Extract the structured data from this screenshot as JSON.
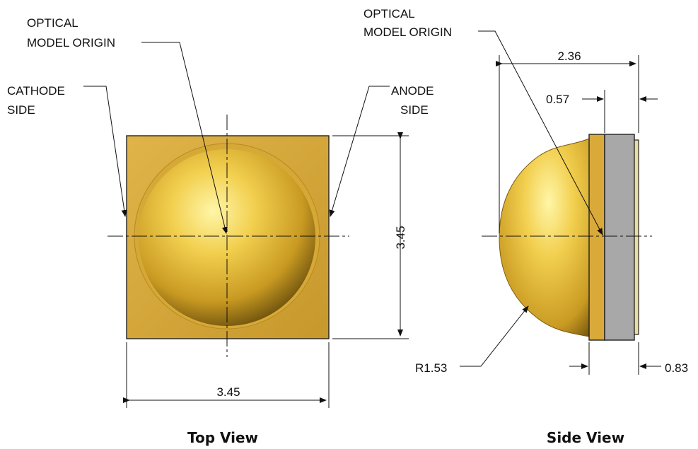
{
  "views": {
    "top": {
      "title": "Top View",
      "labels": {
        "optical_origin_line1": "OPTICAL",
        "optical_origin_line2": "MODEL ORIGIN",
        "cathode_line1": "CATHODE",
        "cathode_line2": "SIDE",
        "anode_line1": "ANODE",
        "anode_line2": "SIDE"
      },
      "dimensions": {
        "height": "3.45",
        "width": "3.45"
      }
    },
    "side": {
      "title": "Side View",
      "labels": {
        "optical_origin_line1": "OPTICAL",
        "optical_origin_line2": "MODEL ORIGIN"
      },
      "dimensions": {
        "overall_length": "2.36",
        "base_offset": "0.57",
        "dome_radius": "R1.53",
        "substrate_thickness": "0.83"
      }
    }
  },
  "colors": {
    "body_gold": "#D9A93A",
    "dome_highlight": "#FFF3A0",
    "dome_shadow": "#7A5A10",
    "substrate_gray": "#A8A8A8",
    "pad_cream": "#E8DDA0",
    "line": "#111111"
  }
}
